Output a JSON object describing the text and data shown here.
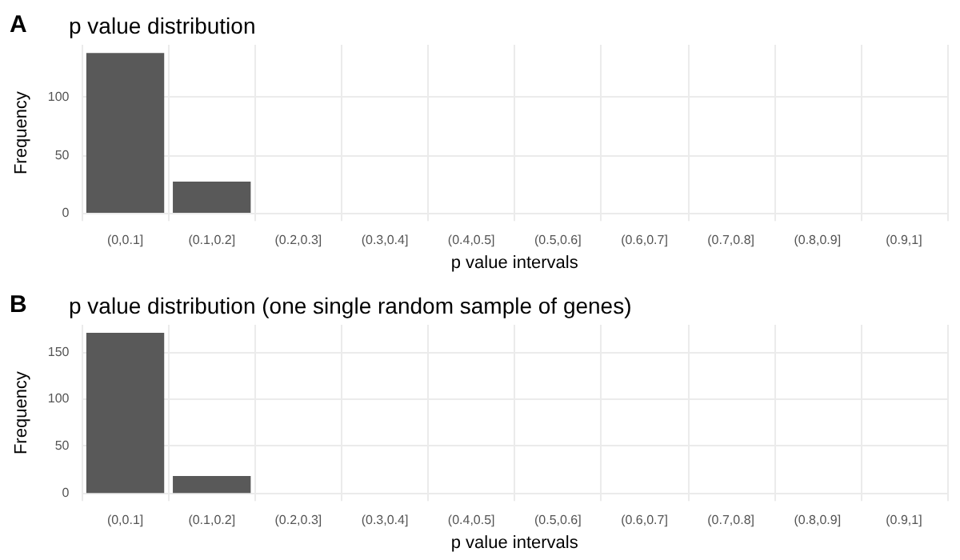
{
  "chart_data": [
    {
      "type": "bar",
      "title": "p value distribution",
      "xlabel": "p value intervals",
      "ylabel": "Frequency",
      "annotations": [
        "A"
      ],
      "categories": [
        "(0,0.1]",
        "(0.1,0.2]",
        "(0.2,0.3]",
        "(0.3,0.4]",
        "(0.4,0.5]",
        "(0.5,0.6]",
        "(0.6,0.7]",
        "(0.7,0.8]",
        "(0.8,0.9]",
        "(0.9,1]"
      ],
      "values": [
        138,
        27,
        0,
        0,
        0,
        0,
        0,
        0,
        0,
        0
      ],
      "color": "#595959",
      "ylim": [
        -7,
        145
      ],
      "yticks": [
        0,
        50,
        100
      ],
      "grid": true
    },
    {
      "type": "bar",
      "title": "p value distribution (one single random sample of genes)",
      "xlabel": "p value intervals",
      "ylabel": "Frequency",
      "annotations": [
        "B"
      ],
      "categories": [
        "(0,0.1]",
        "(0.1,0.2]",
        "(0.2,0.3]",
        "(0.3,0.4]",
        "(0.4,0.5]",
        "(0.5,0.6]",
        "(0.6,0.7]",
        "(0.7,0.8]",
        "(0.8,0.9]",
        "(0.9,1]"
      ],
      "values": [
        170,
        18,
        0,
        0,
        0,
        0,
        0,
        0,
        0,
        0
      ],
      "color": "#595959",
      "ylim": [
        -8.5,
        178.5
      ],
      "yticks": [
        0,
        50,
        100,
        150
      ],
      "grid": true
    }
  ]
}
